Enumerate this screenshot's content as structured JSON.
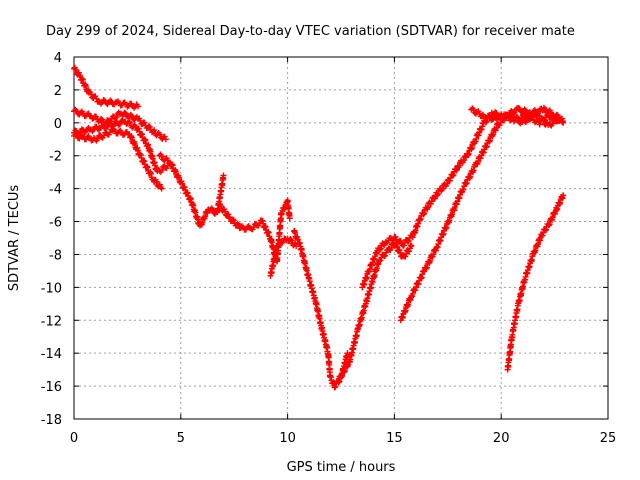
{
  "chart_data": {
    "type": "scatter",
    "title": "Day 299 of 2024, Sidereal Day-to-day VTEC variation (SDTVAR) for receiver mate",
    "xlabel": "GPS time / hours",
    "ylabel": "SDTVAR / TECUs",
    "xlim": [
      0,
      25
    ],
    "ylim": [
      -18,
      4
    ],
    "xticks": [
      "0",
      "5",
      "10",
      "15",
      "20",
      "25"
    ],
    "yticks": [
      "4",
      "2",
      "0",
      "-2",
      "-4",
      "-6",
      "-8",
      "-10",
      "-12",
      "-14",
      "-16",
      "-18"
    ],
    "grid": true,
    "marker": "plus",
    "color": "#ff0000",
    "series": [
      {
        "points": [
          [
            0,
            3.3
          ],
          [
            0.3,
            2.8
          ],
          [
            0.7,
            1.8
          ],
          [
            1.2,
            1.3
          ],
          [
            2.0,
            1.2
          ],
          [
            3.0,
            1.0
          ]
        ]
      },
      {
        "points": [
          [
            0,
            0.7
          ],
          [
            0.8,
            0.4
          ],
          [
            1.5,
            0.0
          ],
          [
            2.2,
            0.6
          ],
          [
            3.0,
            0.2
          ],
          [
            3.8,
            -0.6
          ],
          [
            4.3,
            -1.0
          ]
        ]
      },
      {
        "points": [
          [
            0,
            -0.6
          ],
          [
            0.8,
            -0.4
          ],
          [
            1.6,
            -0.2
          ],
          [
            2.4,
            0.1
          ],
          [
            3.0,
            -0.4
          ],
          [
            3.5,
            -1.5
          ],
          [
            3.9,
            -3.0
          ],
          [
            4.5,
            -2.5
          ]
        ]
      },
      {
        "points": [
          [
            0,
            -0.8
          ],
          [
            1.0,
            -1.0
          ],
          [
            1.8,
            -0.5
          ],
          [
            2.6,
            -0.7
          ],
          [
            3.1,
            -2.0
          ],
          [
            3.7,
            -3.4
          ],
          [
            4.1,
            -4.0
          ]
        ]
      },
      {
        "points": [
          [
            4.0,
            -2.0
          ],
          [
            4.5,
            -2.4
          ],
          [
            5.0,
            -3.6
          ],
          [
            5.5,
            -4.8
          ],
          [
            5.9,
            -6.3
          ],
          [
            6.3,
            -5.2
          ],
          [
            6.7,
            -5.5
          ],
          [
            7.0,
            -3.2
          ]
        ]
      },
      {
        "points": [
          [
            6.8,
            -5.0
          ],
          [
            7.3,
            -5.8
          ],
          [
            7.8,
            -6.4
          ],
          [
            8.3,
            -6.4
          ],
          [
            8.8,
            -6.0
          ],
          [
            9.2,
            -7.0
          ],
          [
            9.5,
            -8.5
          ],
          [
            9.7,
            -5.5
          ],
          [
            10.0,
            -4.8
          ],
          [
            10.1,
            -5.8
          ]
        ]
      },
      {
        "points": [
          [
            9.2,
            -9.3
          ],
          [
            9.5,
            -7.5
          ],
          [
            9.8,
            -7.2
          ],
          [
            10.0,
            -7.0
          ],
          [
            10.4,
            -7.5
          ]
        ]
      },
      {
        "points": [
          [
            10.3,
            -6.6
          ],
          [
            10.6,
            -7.5
          ],
          [
            11.0,
            -9.5
          ],
          [
            11.3,
            -10.8
          ],
          [
            11.6,
            -12.5
          ],
          [
            11.9,
            -14.0
          ],
          [
            12.0,
            -15.5
          ],
          [
            12.2,
            -16.0
          ],
          [
            12.5,
            -15.5
          ],
          [
            12.8,
            -14.0
          ]
        ]
      },
      {
        "points": [
          [
            12.4,
            -15.6
          ],
          [
            12.9,
            -14.5
          ],
          [
            13.3,
            -12.5
          ],
          [
            13.7,
            -10.8
          ],
          [
            14.0,
            -9.5
          ],
          [
            14.3,
            -8.3
          ],
          [
            14.7,
            -7.8
          ],
          [
            15.0,
            -7.3
          ],
          [
            15.4,
            -8.2
          ],
          [
            15.8,
            -7.5
          ]
        ]
      },
      {
        "points": [
          [
            13.5,
            -10.0
          ],
          [
            13.8,
            -9.0
          ],
          [
            14.2,
            -7.8
          ],
          [
            14.6,
            -7.2
          ],
          [
            15.0,
            -7.0
          ],
          [
            15.4,
            -7.4
          ],
          [
            15.9,
            -6.8
          ],
          [
            16.2,
            -5.8
          ],
          [
            16.6,
            -5.0
          ],
          [
            17.0,
            -4.3
          ],
          [
            17.5,
            -3.6
          ],
          [
            18.0,
            -2.6
          ],
          [
            18.4,
            -2.0
          ],
          [
            18.8,
            -1.0
          ],
          [
            19.2,
            0.0
          ],
          [
            19.6,
            0.6
          ],
          [
            20.0,
            0.4
          ],
          [
            20.6,
            0.2
          ],
          [
            21.2,
            0.4
          ],
          [
            21.8,
            0.0
          ],
          [
            22.2,
            0.4
          ],
          [
            22.7,
            0.2
          ],
          [
            22.9,
            0.0
          ]
        ]
      },
      {
        "points": [
          [
            15.3,
            -12.0
          ],
          [
            15.8,
            -10.5
          ],
          [
            16.4,
            -9.0
          ],
          [
            17.0,
            -7.5
          ],
          [
            17.6,
            -5.8
          ],
          [
            18.2,
            -4.0
          ],
          [
            18.8,
            -2.6
          ],
          [
            19.3,
            -1.4
          ],
          [
            19.8,
            -0.2
          ],
          [
            20.3,
            0.5
          ],
          [
            20.8,
            0.8
          ],
          [
            21.4,
            0.6
          ],
          [
            22.0,
            0.8
          ],
          [
            22.5,
            0.5
          ],
          [
            22.9,
            0.1
          ]
        ]
      },
      {
        "points": [
          [
            18.6,
            0.8
          ],
          [
            19.2,
            0.4
          ],
          [
            19.8,
            0.2
          ],
          [
            20.3,
            0.5
          ],
          [
            21.0,
            0.0
          ],
          [
            21.6,
            0.6
          ],
          [
            22.2,
            -0.2
          ],
          [
            22.7,
            0.3
          ]
        ]
      },
      {
        "points": [
          [
            20.3,
            -15.0
          ],
          [
            20.5,
            -13.0
          ],
          [
            20.8,
            -11.0
          ],
          [
            21.1,
            -9.5
          ],
          [
            21.5,
            -8.0
          ],
          [
            21.9,
            -6.8
          ],
          [
            22.3,
            -6.0
          ],
          [
            22.6,
            -5.2
          ],
          [
            22.9,
            -4.4
          ]
        ]
      }
    ]
  }
}
